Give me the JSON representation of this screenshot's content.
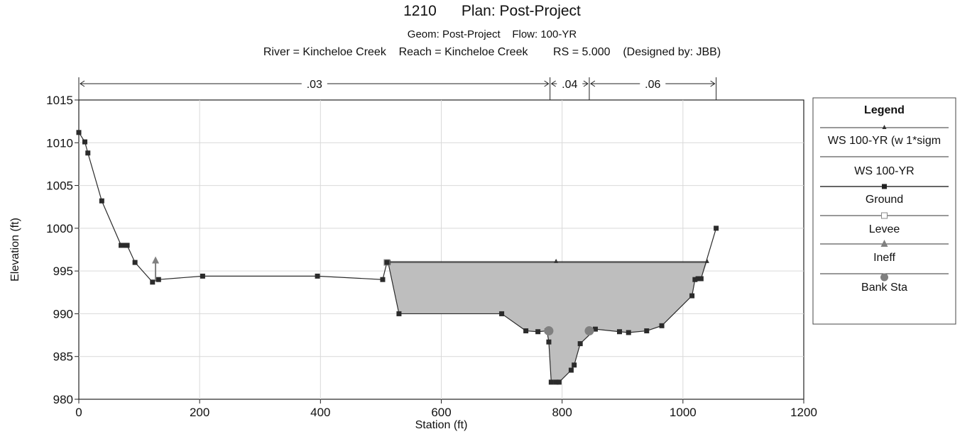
{
  "chart_data": {
    "type": "line",
    "title_line1": "1210      Plan: Post-Project",
    "title_line2": "Geom: Post-Project    Flow: 100-YR",
    "title_line3": "River = Kincheloe Creek    Reach = Kincheloe Creek        RS = 5.000    (Designed by: JBB)",
    "xlabel": "Station (ft)",
    "ylabel": "Elevation (ft)",
    "xlim": [
      0,
      1200
    ],
    "ylim": [
      980,
      1015
    ],
    "xticks": [
      "0",
      "200",
      "400",
      "600",
      "800",
      "1000",
      "1200"
    ],
    "yticks": [
      "980",
      "985",
      "990",
      "995",
      "1000",
      "1005",
      "1010",
      "1015"
    ],
    "manning_n": [
      {
        "label": ".03",
        "from": 0,
        "to": 780
      },
      {
        "label": ".04",
        "from": 780,
        "to": 845
      },
      {
        "label": ".06",
        "from": 845,
        "to": 1055
      }
    ],
    "legend": {
      "title": "Legend",
      "placement": "right",
      "entries": [
        "WS 100-YR (w 1*sigm",
        "WS 100-YR",
        "Ground",
        "Levee",
        "Ineff",
        "Bank Sta"
      ]
    },
    "series": [
      {
        "name": "WS 100-YR (w 1*sigm",
        "x": [
          510,
          1040
        ],
        "y": [
          996.1,
          996.1
        ]
      },
      {
        "name": "WS 100-YR",
        "x": [
          510,
          1040
        ],
        "y": [
          996.0,
          996.0
        ]
      },
      {
        "name": "Ground",
        "x": [
          0,
          10,
          15,
          38,
          70,
          78,
          80,
          93,
          122,
          132,
          205,
          395,
          503,
          510,
          512,
          530,
          700,
          740,
          760,
          775,
          778,
          782,
          790,
          795,
          815,
          820,
          830,
          855,
          895,
          910,
          940,
          965,
          1015,
          1020,
          1025,
          1030,
          1055
        ],
        "y": [
          1011.2,
          1010.1,
          1008.8,
          1003.2,
          998.0,
          998.0,
          998.0,
          996.0,
          993.7,
          994.0,
          994.4,
          994.4,
          994.0,
          996.0,
          996.0,
          990.0,
          990.0,
          988.0,
          987.9,
          988.0,
          986.7,
          982.0,
          982.0,
          982.0,
          983.4,
          984.0,
          986.5,
          988.2,
          987.9,
          987.8,
          988.0,
          988.6,
          992.1,
          994.0,
          994.1,
          994.1,
          1000.0
        ]
      },
      {
        "name": "Levee",
        "x": [
          510
        ],
        "y": [
          996.0
        ]
      },
      {
        "name": "Ineff",
        "x": [
          127
        ],
        "y": [
          996.3
        ]
      },
      {
        "name": "Bank Sta",
        "x": [
          778,
          845
        ],
        "y": [
          988.0,
          988.0
        ]
      }
    ]
  },
  "colors": {
    "ground": "#2b2b2b",
    "water_fill": "#bebebe",
    "ineff": "#808080",
    "bank": "#808080",
    "grid": "#d9d9d9"
  }
}
